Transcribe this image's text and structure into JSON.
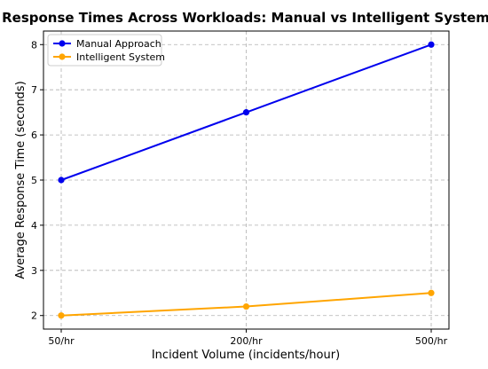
{
  "chart_data": {
    "type": "line",
    "title": "Response Times Across Workloads: Manual vs Intelligent System",
    "xlabel": "Incident Volume (incidents/hour)",
    "ylabel": "Average Response Time (seconds)",
    "categories": [
      "50/hr",
      "200/hr",
      "500/hr"
    ],
    "yticks": [
      2,
      3,
      4,
      5,
      6,
      7,
      8
    ],
    "ylim": [
      1.7,
      8.3
    ],
    "grid": true,
    "legend_position": "top-left",
    "series": [
      {
        "name": "Manual Approach",
        "values": [
          5.0,
          6.5,
          8.0
        ],
        "color": "#0000ee"
      },
      {
        "name": "Intelligent System",
        "values": [
          2.0,
          2.2,
          2.5
        ],
        "color": "#ffa500"
      }
    ]
  }
}
